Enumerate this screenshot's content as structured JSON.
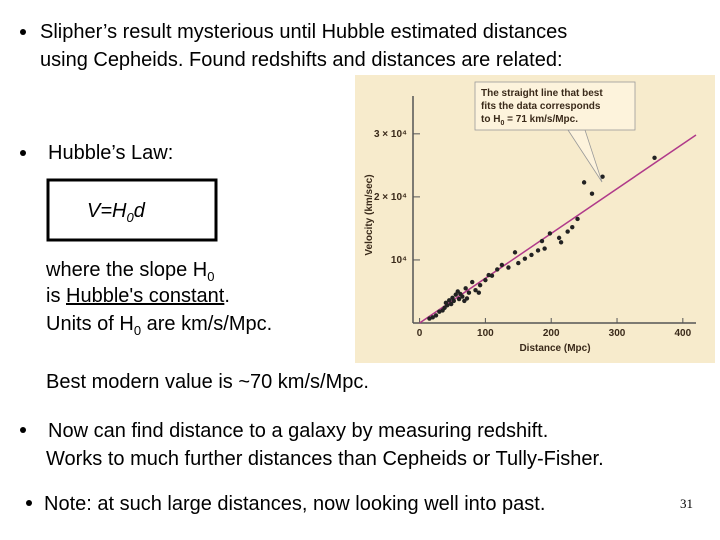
{
  "slide": {
    "bullet_1": [
      "Slipher’s result mysterious until Hubble estimated distances",
      "using Cepheids.  Found redshifts and distances are related:"
    ],
    "hubble_law": "Hubble’s Law:",
    "equation": [
      "V=H",
      "0",
      "d"
    ],
    "slope_line_1": [
      "where the slope H",
      "0"
    ],
    "slope_line_2": [
      "is ",
      "Hubble's constant",
      "."
    ],
    "slope_line_3": [
      "Units of H",
      "0",
      " are km/s/Mpc."
    ],
    "best_value": "Best modern value is ~70 km/s/Mpc.",
    "bullet_3": [
      "Now can find distance to a galaxy by measuring redshift.",
      "Works to much further distances than Cepheids or Tully-Fisher."
    ],
    "bullet_4": "Note: at such large distances, now looking well into past.",
    "page_number": "31"
  },
  "chart_data": {
    "type": "scatter",
    "annotation": [
      "The straight line that best",
      "fits the data corresponds",
      "to H",
      "0",
      " = 71 km/s/Mpc."
    ],
    "x_label": "Distance (Mpc)",
    "y_label": "Velocity (km/sec)",
    "xlim": [
      -10,
      420
    ],
    "ylim": [
      0,
      36000
    ],
    "xticks": [
      0,
      100,
      200,
      300,
      400
    ],
    "yticks": [
      {
        "value": 10000,
        "label": "10⁴"
      },
      {
        "value": 20000,
        "label": "2 × 10⁴"
      },
      {
        "value": 30000,
        "label": "3 × 10⁴"
      }
    ],
    "point_color": "#222222",
    "line_color": "#b03a8a",
    "fit_line": {
      "x": [
        0,
        420
      ],
      "values": [
        0,
        29820
      ]
    },
    "x": [
      357,
      278,
      250,
      262,
      240,
      225,
      212,
      198,
      186,
      180,
      170,
      160,
      150,
      135,
      118,
      110,
      100,
      92,
      85,
      80,
      75,
      70,
      65,
      60,
      58,
      55,
      52,
      50,
      48,
      45,
      42,
      40,
      38,
      35,
      30,
      25,
      20,
      15,
      68,
      62,
      72,
      90,
      105,
      125,
      145,
      190,
      215,
      232
    ],
    "values": [
      26200,
      23200,
      22300,
      20500,
      16500,
      14500,
      13500,
      14200,
      13000,
      11500,
      10800,
      10200,
      9500,
      8800,
      8500,
      7500,
      6800,
      6000,
      5200,
      6500,
      4800,
      5500,
      4200,
      3800,
      5000,
      4500,
      3500,
      4000,
      3000,
      3600,
      2800,
      3200,
      2400,
      2000,
      1800,
      1200,
      900,
      700,
      3500,
      4600,
      3900,
      4800,
      7600,
      9200,
      11200,
      11800,
      12800,
      15200
    ]
  }
}
